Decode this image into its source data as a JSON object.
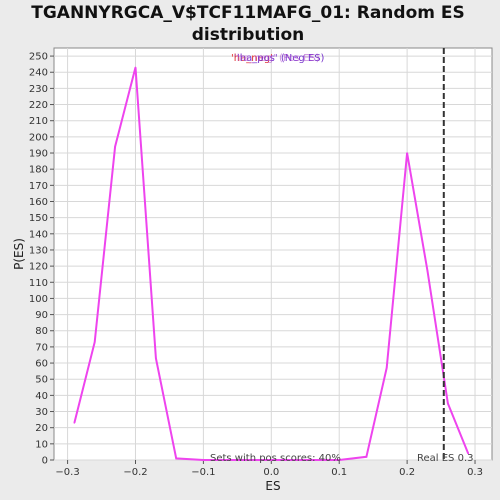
{
  "chart_data": {
    "type": "line",
    "title_lines": [
      "TGANNYRGCA_V$TCF11MAFG_01: Random ES",
      "distribution"
    ],
    "xlabel": "ES",
    "ylabel": "P(ES)",
    "xlim": [
      -0.32,
      0.325
    ],
    "ylim": [
      0,
      255
    ],
    "x_ticks": [
      -0.3,
      -0.2,
      -0.1,
      0.0,
      0.1,
      0.2,
      0.3
    ],
    "x_tick_labels": [
      "−0.3",
      "−0.2",
      "−0.1",
      "0.0",
      "0.1",
      "0.2",
      "0.3"
    ],
    "y_ticks": [
      0,
      10,
      20,
      30,
      40,
      50,
      60,
      70,
      80,
      90,
      100,
      110,
      120,
      130,
      140,
      150,
      160,
      170,
      180,
      190,
      200,
      210,
      220,
      230,
      240,
      250
    ],
    "grid": true,
    "series": [
      {
        "color": "#ee44ee",
        "x": [
          -0.29,
          -0.26,
          -0.23,
          -0.2,
          -0.17,
          -0.14,
          -0.1,
          -0.05,
          0.0,
          0.05,
          0.1,
          0.14,
          0.17,
          0.2,
          0.23,
          0.26,
          0.29
        ],
        "y": [
          23,
          73,
          194,
          243,
          63,
          1,
          0,
          0,
          0,
          0,
          0,
          2,
          57,
          190,
          117,
          35,
          4
        ]
      }
    ],
    "legend": {
      "position": "top-center",
      "text_red": "'ha_neg'",
      "text_purple": "'ha_pos' (Neg ES)",
      "overlay_text": "'ha_neg' (Pos ES)"
    },
    "vline": {
      "x": 0.254,
      "style": "dashed",
      "color": "#333333"
    },
    "annotations": {
      "pos_scores": "Sets with pos scores: 40%",
      "real_es": "Real ES 0.3"
    }
  }
}
